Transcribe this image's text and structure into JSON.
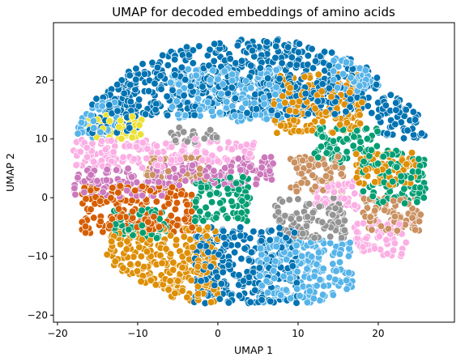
{
  "chart_data": {
    "type": "scatter",
    "title": "UMAP for decoded embeddings of amino acids",
    "xlabel": "UMAP 1",
    "ylabel": "UMAP 2",
    "xlim": [
      -20.5,
      29.5
    ],
    "ylim": [
      -21.2,
      29.8
    ],
    "xticks": [
      -20,
      -10,
      0,
      10,
      20
    ],
    "yticks": [
      -20,
      -10,
      0,
      10,
      20
    ],
    "grid": false,
    "legend": "none",
    "series": [
      {
        "color": "#0173b2",
        "regions": [
          {
            "x": [
              -14,
              20
            ],
            "y": [
              14,
              27
            ]
          },
          {
            "x": [
              -3,
              10
            ],
            "y": [
              -18,
              -5
            ]
          },
          {
            "x": [
              20,
              26
            ],
            "y": [
              10,
              18
            ]
          },
          {
            "x": [
              -16,
              -10
            ],
            "y": [
              11,
              20
            ]
          }
        ]
      },
      {
        "color": "#56b4e9",
        "regions": [
          {
            "x": [
              -6,
              8
            ],
            "y": [
              13,
              22
            ]
          },
          {
            "x": [
              5,
              17
            ],
            "y": [
              -18,
              -7
            ]
          },
          {
            "x": [
              -18,
              -12
            ],
            "y": [
              10,
              17
            ]
          },
          {
            "x": [
              14,
              20
            ],
            "y": [
              18,
              24
            ]
          }
        ]
      },
      {
        "color": "#de8f05",
        "regions": [
          {
            "x": [
              -14,
              0
            ],
            "y": [
              -16,
              -5
            ]
          },
          {
            "x": [
              -6,
              0
            ],
            "y": [
              -18,
              -10
            ]
          },
          {
            "x": [
              7,
              18
            ],
            "y": [
              11,
              21
            ]
          },
          {
            "x": [
              17,
              25
            ],
            "y": [
              2,
              8
            ]
          }
        ]
      },
      {
        "color": "#029e73",
        "regions": [
          {
            "x": [
              -3,
              4
            ],
            "y": [
              -4,
              4
            ]
          },
          {
            "x": [
              12,
              20
            ],
            "y": [
              6,
              12
            ]
          },
          {
            "x": [
              18,
              26
            ],
            "y": [
              -1,
              8
            ]
          },
          {
            "x": [
              -13,
              -6
            ],
            "y": [
              -7,
              -2
            ]
          }
        ]
      },
      {
        "color": "#d55e00",
        "regions": [
          {
            "x": [
              -17,
              -3
            ],
            "y": [
              -6,
              2
            ]
          }
        ]
      },
      {
        "color": "#cc78bc",
        "regions": [
          {
            "x": [
              -18,
              -6
            ],
            "y": [
              0,
              5
            ]
          },
          {
            "x": [
              2,
              7
            ],
            "y": [
              2,
              7
            ]
          },
          {
            "x": [
              -8,
              2
            ],
            "y": [
              2,
              6
            ]
          }
        ]
      },
      {
        "color": "#ca9161",
        "regions": [
          {
            "x": [
              -9,
              -1
            ],
            "y": [
              3,
              7
            ]
          },
          {
            "x": [
              9,
              16
            ],
            "y": [
              1,
              7
            ]
          },
          {
            "x": [
              18,
              26
            ],
            "y": [
              -6,
              0
            ]
          }
        ]
      },
      {
        "color": "#fbafe4",
        "regions": [
          {
            "x": [
              -18,
              -4
            ],
            "y": [
              5,
              10
            ]
          },
          {
            "x": [
              -5,
              5
            ],
            "y": [
              6,
              10
            ]
          },
          {
            "x": [
              17,
              24
            ],
            "y": [
              -10,
              -4
            ]
          },
          {
            "x": [
              12,
              18
            ],
            "y": [
              -2,
              3
            ]
          }
        ]
      },
      {
        "color": "#949494",
        "regions": [
          {
            "x": [
              7,
              16
            ],
            "y": [
              -7,
              0
            ]
          },
          {
            "x": [
              -6,
              0
            ],
            "y": [
              9,
              12
            ]
          }
        ]
      },
      {
        "color": "#ece133",
        "regions": [
          {
            "x": [
              -16,
              -9
            ],
            "y": [
              10,
              14
            ]
          }
        ]
      }
    ]
  }
}
